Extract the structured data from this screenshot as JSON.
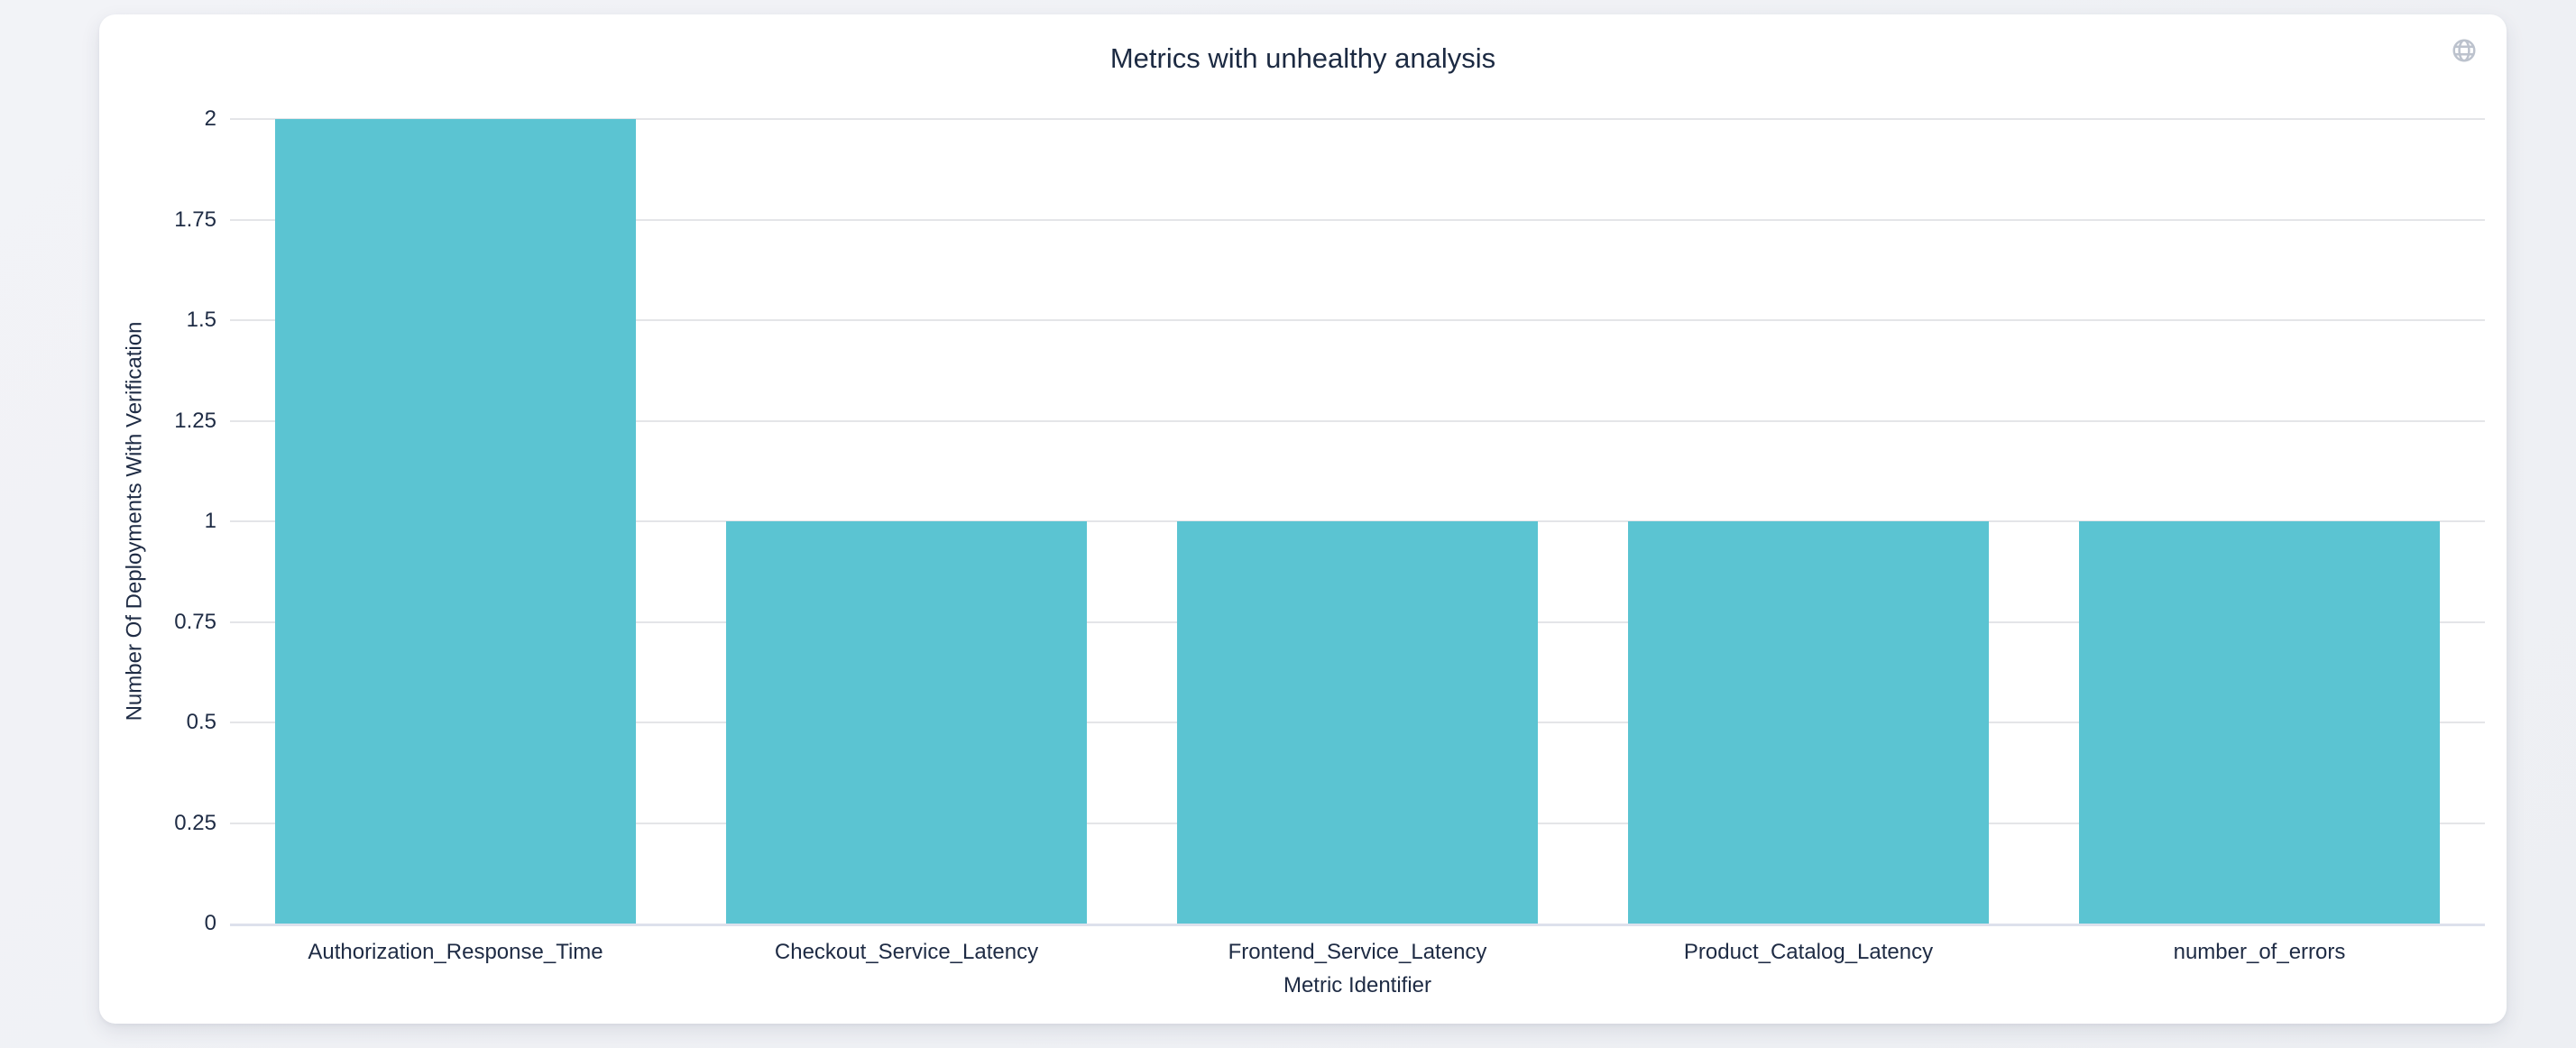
{
  "page": {
    "background": "#edeff3"
  },
  "card": {
    "background": "#ffffff"
  },
  "header": {
    "title": "Metrics with unhealthy analysis",
    "icon": "globe-icon"
  },
  "chart_data": {
    "type": "bar",
    "title": "Metrics with unhealthy analysis",
    "categories": [
      "Authorization_Response_Time",
      "Checkout_Service_Latency",
      "Frontend_Service_Latency",
      "Product_Catalog_Latency",
      "number_of_errors"
    ],
    "values": [
      2,
      1,
      1,
      1,
      1
    ],
    "xlabel": "Metric Identifier",
    "ylabel": "Number Of Deployments With Verification",
    "ylim": [
      0,
      2
    ],
    "yticks": [
      0,
      0.25,
      0.5,
      0.75,
      1,
      1.25,
      1.5,
      1.75,
      2
    ],
    "ytick_labels": [
      "0",
      "0.25",
      "0.5",
      "0.75",
      "1",
      "1.25",
      "1.5",
      "1.75",
      "2"
    ],
    "grid": true,
    "legend": "none",
    "bar_color": "#5bc4d2",
    "bargap_fraction": 0.1
  },
  "colors": {
    "text": "#1e2b44",
    "title_text": "#1c2a42",
    "grid_line": "#e4e5e8",
    "zero_line": "#dde1ec",
    "bar": "#5bc4d2",
    "icon": "#bcc2cd"
  }
}
